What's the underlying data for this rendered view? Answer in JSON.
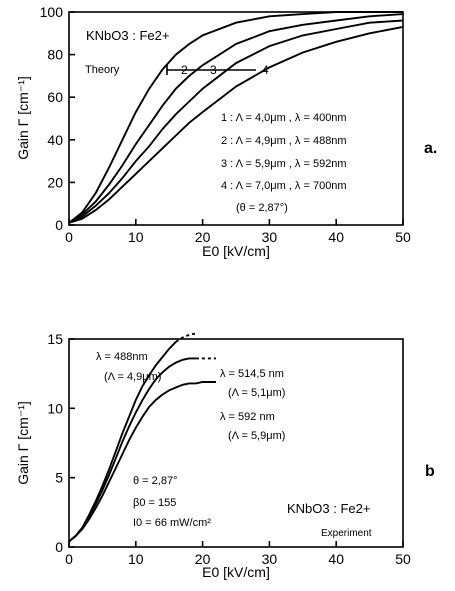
{
  "chart_data": [
    {
      "type": "line",
      "panel_label": "a.",
      "title": "KNbO3 : Fe2+",
      "note": "Theory",
      "xlabel": "E0 [kV/cm]",
      "ylabel": "Gain Γ [cm⁻¹]",
      "xlim": [
        0,
        50
      ],
      "ylim": [
        0,
        100
      ],
      "xticks": [
        0,
        10,
        20,
        30,
        40,
        50
      ],
      "yticks": [
        0,
        20,
        40,
        60,
        80,
        100
      ],
      "curve_tags": [
        "1",
        "2",
        "3",
        "4"
      ],
      "legend": [
        "1 : Λ = 4,0μm , λ = 400nm",
        "2 : Λ = 4,9μm , λ = 488nm",
        "3 : Λ = 5,9μm , λ = 592nm",
        "4 : Λ = 7,0μm , λ = 700nm"
      ],
      "legend_note": "(θ = 2,87°)",
      "series": [
        {
          "name": "1",
          "x": [
            0,
            2,
            4,
            6,
            8,
            10,
            12,
            14,
            16,
            18,
            20,
            25,
            30,
            35,
            40,
            45,
            50
          ],
          "y": [
            1,
            6,
            15,
            27,
            40,
            53,
            64,
            73,
            80,
            85,
            89,
            95,
            98,
            99,
            100,
            100,
            100
          ]
        },
        {
          "name": "2",
          "x": [
            0,
            2,
            4,
            6,
            8,
            10,
            12,
            14,
            16,
            18,
            20,
            25,
            30,
            35,
            40,
            45,
            50
          ],
          "y": [
            1,
            5,
            11,
            19,
            28,
            38,
            47,
            56,
            64,
            70,
            75,
            85,
            91,
            94,
            96,
            98,
            99
          ]
        },
        {
          "name": "3",
          "x": [
            0,
            2,
            4,
            6,
            8,
            10,
            12,
            14,
            16,
            18,
            20,
            25,
            30,
            35,
            40,
            45,
            50
          ],
          "y": [
            1,
            4,
            9,
            15,
            22,
            30,
            37,
            45,
            52,
            58,
            64,
            76,
            84,
            89,
            92,
            95,
            96
          ]
        },
        {
          "name": "4",
          "x": [
            0,
            2,
            4,
            6,
            8,
            10,
            12,
            14,
            16,
            18,
            20,
            25,
            30,
            35,
            40,
            45,
            50
          ],
          "y": [
            1,
            3,
            7,
            12,
            18,
            24,
            30,
            36,
            42,
            48,
            53,
            65,
            74,
            81,
            86,
            90,
            93
          ]
        }
      ]
    },
    {
      "type": "line",
      "panel_label": "b",
      "title": "KNbO3 : Fe2+",
      "note": "Experiment",
      "xlabel": "E0 [kV/cm]",
      "ylabel": "Gain Γ [cm⁻¹]",
      "xlim": [
        0,
        50
      ],
      "ylim": [
        0,
        15
      ],
      "xticks": [
        0,
        10,
        20,
        30,
        40,
        50
      ],
      "yticks": [
        0,
        5,
        10,
        15
      ],
      "params": [
        "θ = 2,87°",
        "β0 = 155",
        "I0 = 66 mW/cm²"
      ],
      "series": [
        {
          "name": "λ = 488nm",
          "sub": "(Λ = 4,9μm)",
          "x": [
            0,
            1,
            2,
            3,
            4,
            5,
            6,
            7,
            8,
            9,
            10,
            11,
            12,
            13,
            14,
            15,
            16
          ],
          "y": [
            0.4,
            0.8,
            1.4,
            2.3,
            3.3,
            4.4,
            5.6,
            6.9,
            8.2,
            9.4,
            10.6,
            11.6,
            12.4,
            13.1,
            13.7,
            14.3,
            14.8
          ],
          "dash_x": [
            16,
            17,
            18,
            19
          ],
          "dash_y": [
            14.8,
            15.1,
            15.3,
            15.4
          ]
        },
        {
          "name": "λ = 514,5 nm",
          "sub": "(Λ = 5,1μm)",
          "x": [
            0,
            1,
            2,
            3,
            4,
            5,
            6,
            7,
            8,
            9,
            10,
            11,
            12,
            13,
            14,
            15,
            16,
            17,
            18,
            19
          ],
          "y": [
            0.4,
            0.8,
            1.4,
            2.2,
            3.1,
            4.1,
            5.2,
            6.4,
            7.6,
            8.7,
            9.7,
            10.6,
            11.4,
            12.1,
            12.6,
            13.0,
            13.3,
            13.5,
            13.6,
            13.6
          ],
          "dash_x": [
            19,
            20,
            21,
            22
          ],
          "dash_y": [
            13.6,
            13.6,
            13.6,
            13.6
          ]
        },
        {
          "name": "λ = 592 nm",
          "sub": "(Λ = 5,9μm)",
          "x": [
            0,
            1,
            2,
            3,
            4,
            5,
            6,
            7,
            8,
            9,
            10,
            11,
            12,
            13,
            14,
            15,
            16,
            17,
            18,
            19,
            20,
            21,
            22
          ],
          "y": [
            0.4,
            0.8,
            1.3,
            2.0,
            2.8,
            3.7,
            4.7,
            5.7,
            6.7,
            7.7,
            8.6,
            9.4,
            10.1,
            10.6,
            11.0,
            11.3,
            11.5,
            11.7,
            11.8,
            11.8,
            11.9,
            11.9,
            11.9
          ],
          "dash_x": [],
          "dash_y": []
        }
      ]
    }
  ]
}
